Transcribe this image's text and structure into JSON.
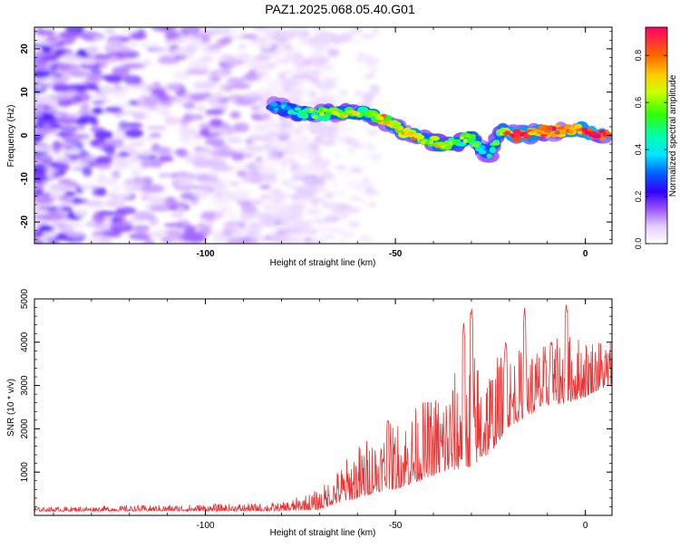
{
  "title": "PAZ1.2025.068.05.40.G01",
  "chart_data": [
    {
      "type": "heatmap",
      "xlabel": "Height of straight line (km)",
      "ylabel": "Frequency (Hz)",
      "xlim": [
        -145,
        7
      ],
      "ylim": [
        -25,
        25
      ],
      "x_ticks": [
        -100,
        -50,
        0
      ],
      "y_ticks": [
        -20,
        -10,
        0,
        10,
        20
      ],
      "colorbar": {
        "label": "Normalized spectral amplitude",
        "range": [
          0,
          0.92
        ],
        "ticks": [
          "0.0",
          "0.2",
          "0.4",
          "0.6",
          "0.8"
        ],
        "tick_values": [
          0,
          0.2,
          0.4,
          0.6,
          0.8
        ]
      },
      "signal_track": [
        {
          "x": -82,
          "f": 7,
          "a": 0.25
        },
        {
          "x": -78,
          "f": 6,
          "a": 0.3
        },
        {
          "x": -74,
          "f": 5,
          "a": 0.45
        },
        {
          "x": -70,
          "f": 5,
          "a": 0.5
        },
        {
          "x": -66,
          "f": 5,
          "a": 0.55
        },
        {
          "x": -62,
          "f": 5.5,
          "a": 0.55
        },
        {
          "x": -58,
          "f": 5,
          "a": 0.5
        },
        {
          "x": -54,
          "f": 4,
          "a": 0.65
        },
        {
          "x": -50,
          "f": 2,
          "a": 0.6
        },
        {
          "x": -46,
          "f": 0,
          "a": 0.7
        },
        {
          "x": -42,
          "f": -1,
          "a": 0.55
        },
        {
          "x": -38,
          "f": -2,
          "a": 0.6
        },
        {
          "x": -34,
          "f": -2,
          "a": 0.5
        },
        {
          "x": -30,
          "f": 0,
          "a": 0.55
        },
        {
          "x": -26,
          "f": -5,
          "a": 0.3
        },
        {
          "x": -22,
          "f": 1,
          "a": 0.6
        },
        {
          "x": -18,
          "f": 0,
          "a": 0.85
        },
        {
          "x": -14,
          "f": 0.5,
          "a": 0.7
        },
        {
          "x": -10,
          "f": 1,
          "a": 0.8
        },
        {
          "x": -6,
          "f": 1,
          "a": 0.75
        },
        {
          "x": -2,
          "f": 2,
          "a": 0.7
        },
        {
          "x": 2,
          "f": 0.5,
          "a": 0.9
        },
        {
          "x": 6,
          "f": 0,
          "a": 0.85
        }
      ]
    },
    {
      "type": "line",
      "xlabel": "Height of straight line (km)",
      "ylabel": "SNR (10 * v/v)",
      "xlim": [
        -145,
        7
      ],
      "ylim": [
        0,
        5000
      ],
      "x_ticks": [
        -100,
        -50,
        0
      ],
      "y_ticks": [
        1000,
        2000,
        3000,
        4000,
        5000
      ],
      "color": "#ee3333",
      "envelope": {
        "x": [
          -145,
          -80,
          -70,
          -65,
          -60,
          -55,
          -50,
          -45,
          -40,
          -35,
          -30,
          -25,
          -22,
          -20,
          -15,
          -10,
          -5,
          0,
          3,
          7
        ],
        "baseline": [
          120,
          150,
          250,
          500,
          700,
          900,
          1000,
          1200,
          1400,
          1600,
          1800,
          2000,
          2300,
          2500,
          2700,
          2900,
          3000,
          3100,
          3200,
          3300
        ],
        "amplitude": [
          60,
          120,
          300,
          500,
          800,
          900,
          1000,
          1100,
          1200,
          1400,
          1700,
          1400,
          1200,
          1100,
          1000,
          900,
          1000,
          900,
          800,
          700
        ]
      },
      "peaks": [
        {
          "x": -52,
          "y": 2300
        },
        {
          "x": -32,
          "y": 4500
        },
        {
          "x": -30,
          "y": 4900
        },
        {
          "x": -21,
          "y": 4100
        },
        {
          "x": -16,
          "y": 4800
        },
        {
          "x": -9,
          "y": 4200
        },
        {
          "x": -5,
          "y": 5000
        }
      ]
    }
  ]
}
